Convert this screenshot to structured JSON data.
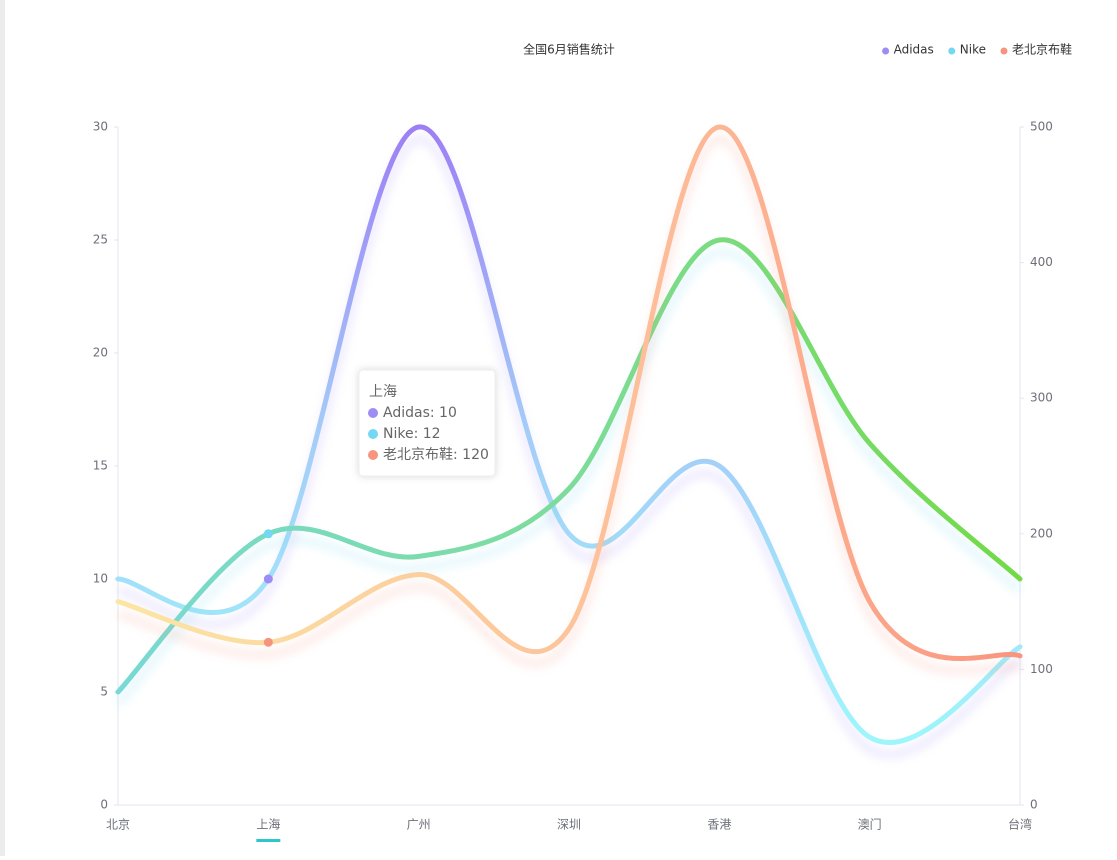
{
  "chart_data": {
    "type": "line",
    "title": "全国6月销售统计",
    "categories": [
      "北京",
      "上海",
      "广州",
      "深圳",
      "香港",
      "澳门",
      "台湾"
    ],
    "series": [
      {
        "name": "Adidas",
        "color": "#9d8cf5",
        "values": [
          10,
          10,
          30,
          12,
          15,
          3,
          7
        ]
      },
      {
        "name": "Nike",
        "color": "#74d8f3",
        "values": [
          5,
          12,
          11,
          14,
          25,
          16,
          10
        ]
      },
      {
        "name": "老北京布鞋",
        "color": "#f5957e",
        "axis": "y2",
        "values": [
          150,
          120,
          170,
          130,
          500,
          150,
          110
        ]
      }
    ],
    "ylim": [
      0,
      30
    ],
    "yticks": [
      0,
      5,
      10,
      15,
      20,
      25,
      30
    ],
    "y2lim": [
      0,
      500
    ],
    "y2ticks": [
      0,
      100,
      200,
      300,
      400,
      500
    ],
    "smooth": true,
    "legend_position": "top-right",
    "tooltip": {
      "title": "上海",
      "items": [
        "Adidas: 10",
        "Nike: 12",
        "老北京布鞋: 120"
      ],
      "category_index": 1
    }
  }
}
